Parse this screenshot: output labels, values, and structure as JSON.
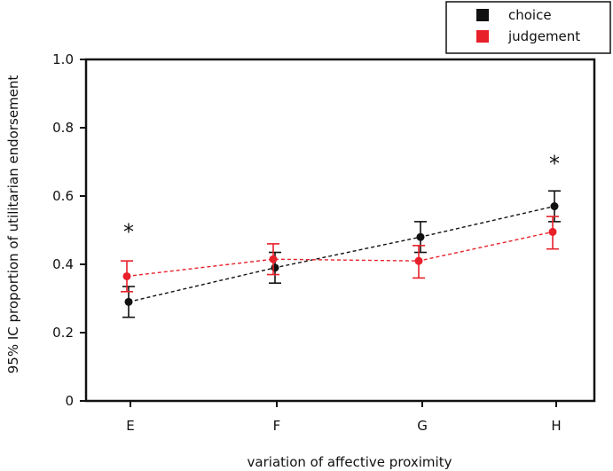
{
  "chart_data": {
    "type": "line",
    "title": "",
    "xlabel": "variation of affective proximity",
    "ylabel": "95% IC proportion of utilitarian endorsement",
    "categories": [
      "E",
      "F",
      "G",
      "H"
    ],
    "ylim": [
      0,
      1.0
    ],
    "yticks": [
      "0",
      "0.2",
      "0.4",
      "0.6",
      "0.8",
      "1.0"
    ],
    "ytick_values": [
      0,
      0.2,
      0.4,
      0.6,
      0.8,
      1.0
    ],
    "grid": false,
    "legend_position": "top-right",
    "series": [
      {
        "name": "choice",
        "color": "#111111",
        "values": [
          0.29,
          0.39,
          0.48,
          0.57
        ],
        "err_low": [
          0.245,
          0.345,
          0.435,
          0.525
        ],
        "err_high": [
          0.335,
          0.435,
          0.525,
          0.615
        ]
      },
      {
        "name": "judgement",
        "color": "#e8202a",
        "values": [
          0.365,
          0.415,
          0.41,
          0.495
        ],
        "err_low": [
          0.32,
          0.37,
          0.36,
          0.445
        ],
        "err_high": [
          0.41,
          0.46,
          0.455,
          0.54
        ]
      }
    ],
    "annotations": [
      {
        "text": "*",
        "category": "E",
        "y": 0.5
      },
      {
        "text": "*",
        "category": "H",
        "y": 0.7
      }
    ]
  }
}
